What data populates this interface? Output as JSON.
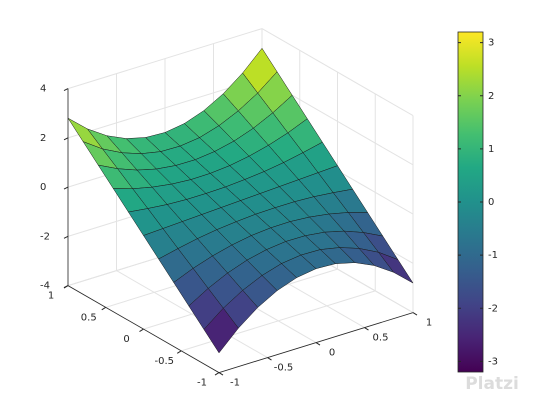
{
  "chart_data": {
    "type": "surface",
    "x": [
      -1,
      -0.8,
      -0.6,
      -0.4,
      -0.2,
      0,
      0.2,
      0.4,
      0.6,
      0.8,
      1
    ],
    "y": [
      -1,
      -0.8,
      -0.6,
      -0.4,
      -0.2,
      0,
      0.2,
      0.4,
      0.6,
      0.8,
      1
    ],
    "z": [
      [
        -3.2,
        -2.44,
        -1.84,
        -1.4,
        -1.12,
        -1,
        -1.04,
        -1.24,
        -1.6,
        -2.12,
        -2.8
      ],
      [
        -2.6,
        -1.98,
        -1.5,
        -1.14,
        -0.9,
        -0.8,
        -0.82,
        -0.98,
        -1.26,
        -1.66,
        -2.2
      ],
      [
        -2.0,
        -1.53,
        -1.15,
        -0.87,
        -0.69,
        -0.6,
        -0.61,
        -0.71,
        -0.91,
        -1.21,
        -1.6
      ],
      [
        -1.4,
        -1.07,
        -0.81,
        -0.61,
        -0.47,
        -0.4,
        -0.39,
        -0.45,
        -0.57,
        -0.75,
        -1.0
      ],
      [
        -0.8,
        -0.62,
        -0.46,
        -0.34,
        -0.26,
        -0.2,
        -0.18,
        -0.18,
        -0.22,
        -0.3,
        -0.4
      ],
      [
        -0.2,
        -0.16,
        -0.12,
        -0.08,
        -0.04,
        0,
        0.04,
        0.08,
        0.12,
        0.16,
        0.2
      ],
      [
        0.4,
        0.3,
        0.22,
        0.18,
        0.18,
        0.2,
        0.26,
        0.34,
        0.46,
        0.62,
        0.8
      ],
      [
        1.0,
        0.75,
        0.57,
        0.45,
        0.39,
        0.4,
        0.47,
        0.61,
        0.81,
        1.07,
        1.4
      ],
      [
        1.6,
        1.21,
        0.91,
        0.71,
        0.61,
        0.6,
        0.69,
        0.87,
        1.15,
        1.53,
        2.0
      ],
      [
        2.2,
        1.66,
        1.26,
        0.98,
        0.82,
        0.8,
        0.9,
        1.14,
        1.5,
        1.98,
        2.6
      ],
      [
        2.8,
        2.12,
        1.6,
        1.24,
        1.04,
        1,
        1.12,
        1.4,
        1.84,
        2.44,
        3.2
      ]
    ],
    "xlim": [
      -1,
      1
    ],
    "ylim": [
      -1,
      1
    ],
    "zlim": [
      -4,
      4
    ],
    "xticks": [
      -1,
      -0.5,
      0,
      0.5,
      1
    ],
    "yticks": [
      -1,
      -0.5,
      0,
      0.5,
      1
    ],
    "zticks": [
      -4,
      -2,
      0,
      2,
      4
    ],
    "grid": true,
    "colormap": "viridis",
    "colorbar": {
      "clim": [
        -3.2,
        3.2
      ],
      "ticks": [
        -3,
        -2,
        -1,
        0,
        1,
        2,
        3
      ]
    },
    "watermark": "Platzi"
  }
}
